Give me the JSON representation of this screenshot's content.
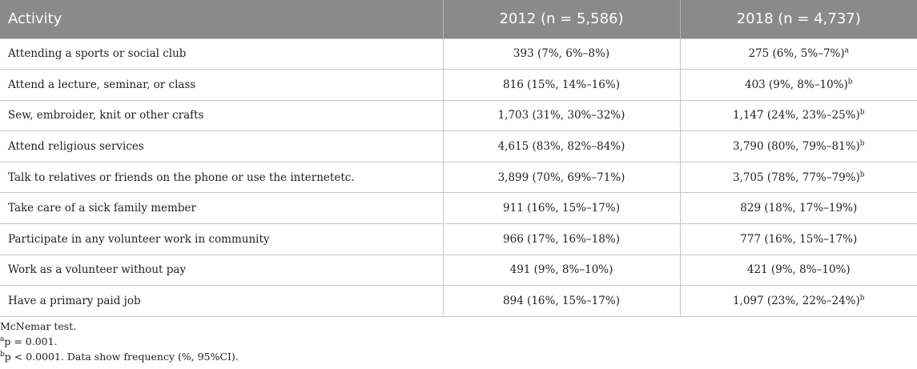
{
  "table": {
    "headers": [
      "Activity",
      "2012 (n = 5,586)",
      "2018 (n = 4,737)"
    ],
    "rows": [
      {
        "activity": "Attending a sports or social club",
        "y2012": "393 (7%, 6%–8%)",
        "y2018": "275 (6%, 5%–7%)",
        "sup": "a"
      },
      {
        "activity": "Attend a lecture, seminar, or class",
        "y2012": "816 (15%, 14%–16%)",
        "y2018": "403 (9%, 8%–10%)",
        "sup": "b"
      },
      {
        "activity": "Sew, embroider, knit or other crafts",
        "y2012": "1,703 (31%, 30%–32%)",
        "y2018": "1,147 (24%, 23%–25%)",
        "sup": "b"
      },
      {
        "activity": "Attend religious services",
        "y2012": "4,615 (83%, 82%–84%)",
        "y2018": "3,790 (80%, 79%–81%)",
        "sup": "b"
      },
      {
        "activity": "Talk to relatives or friends on the phone or use the internetetc.",
        "y2012": "3,899 (70%, 69%–71%)",
        "y2018": "3,705 (78%, 77%–79%)",
        "sup": "b"
      },
      {
        "activity": "Take care of a sick family member",
        "y2012": "911 (16%, 15%–17%)",
        "y2018": "829 (18%, 17%–19%)",
        "sup": ""
      },
      {
        "activity": "Participate in any volunteer work in community",
        "y2012": "966 (17%, 16%–18%)",
        "y2018": "777 (16%, 15%–17%)",
        "sup": ""
      },
      {
        "activity": "Work as a volunteer without pay",
        "y2012": "491 (9%, 8%–10%)",
        "y2018": "421 (9%, 8%–10%)",
        "sup": ""
      },
      {
        "activity": "Have a primary paid job",
        "y2012": "894 (16%, 15%–17%)",
        "y2018": "1,097 (23%, 22%–24%)",
        "sup": "b"
      }
    ]
  },
  "notes": [
    {
      "sup": "",
      "text": "McNemar test."
    },
    {
      "sup": "a",
      "text": "p = 0.001."
    },
    {
      "sup": "b",
      "text": "p < 0.0001. Data show frequency (%, 95%CI)."
    }
  ]
}
